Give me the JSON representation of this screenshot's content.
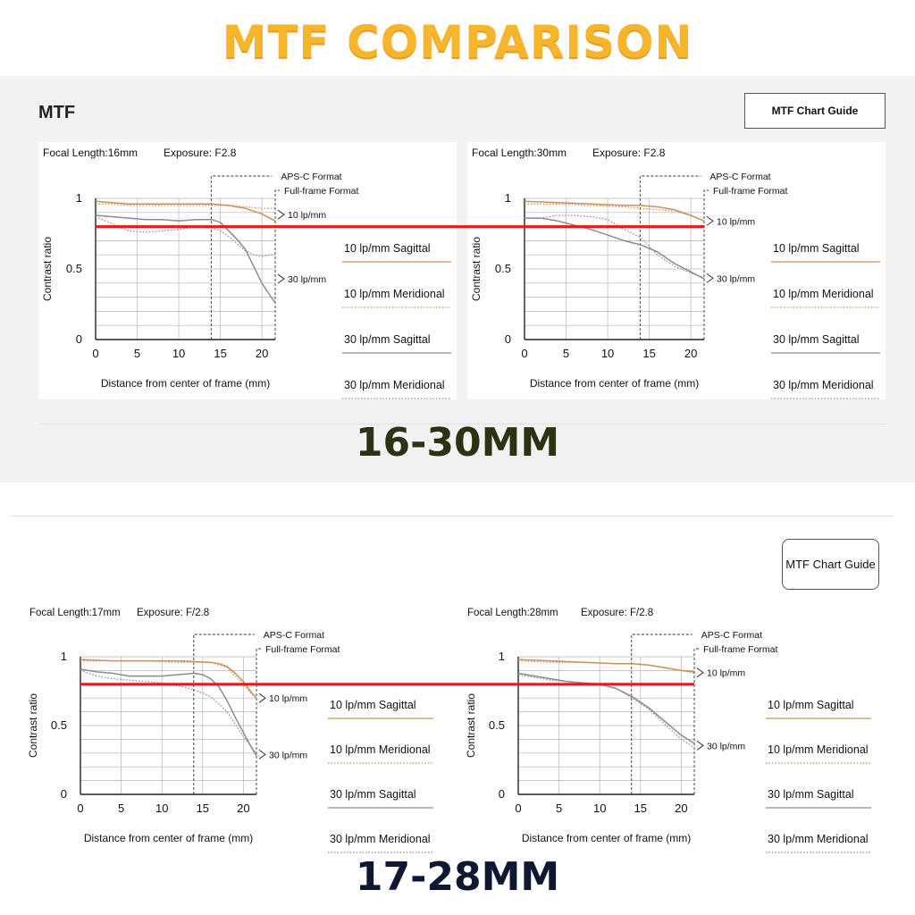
{
  "title": "MTF COMPARISON",
  "top_section": {
    "heading": "MTF",
    "guide_button": "MTF Chart Guide",
    "lens_label": "16-30MM"
  },
  "bottom_section": {
    "guide_button": "MTF Chart Guide",
    "lens_label": "17-28MM"
  },
  "legend": {
    "items": [
      {
        "label": "10 lp/mm Sagittal",
        "style": "solid",
        "color": "#c9925a"
      },
      {
        "label": "10 lp/mm Meridional",
        "style": "dotted",
        "color": "#c9925a"
      },
      {
        "label": "30 lp/mm Sagittal",
        "style": "solid",
        "color": "#8c8c8c"
      },
      {
        "label": "30 lp/mm Meridional",
        "style": "dotted",
        "color": "#8c8c8c"
      }
    ]
  },
  "reference_line": {
    "y": 0.8,
    "color": "#e8191d"
  },
  "chart_data": [
    {
      "id": "c16",
      "type": "line",
      "focal_length_label": "Focal Length:16mm",
      "exposure_label": "Exposure: F2.8",
      "xlabel": "Distance from center of frame (mm)",
      "ylabel": "Contrast ratio",
      "xlim": [
        0,
        21.6
      ],
      "ylim": [
        0,
        1
      ],
      "xticks": [
        "0",
        "5",
        "10",
        "15",
        "20"
      ],
      "yticks": [
        "0",
        "0.5",
        "1"
      ],
      "apsc_label": "APS-C Format",
      "apsc_x": 13.9,
      "ff_label": "Full-frame Format",
      "ff_x": 21.6,
      "annotations": [
        "10 lp/mm",
        "30 lp/mm"
      ],
      "series": [
        {
          "name": "10 lp/mm Sagittal",
          "x": [
            0,
            2,
            4,
            6,
            8,
            10,
            12,
            14,
            16,
            18,
            20,
            21.6
          ],
          "y": [
            0.98,
            0.97,
            0.96,
            0.96,
            0.96,
            0.96,
            0.96,
            0.96,
            0.95,
            0.93,
            0.89,
            0.84
          ]
        },
        {
          "name": "10 lp/mm Meridional",
          "x": [
            0,
            2,
            4,
            6,
            8,
            10,
            12,
            14,
            16,
            18,
            20,
            21.6
          ],
          "y": [
            0.96,
            0.96,
            0.95,
            0.95,
            0.95,
            0.95,
            0.95,
            0.95,
            0.95,
            0.94,
            0.93,
            0.93
          ]
        },
        {
          "name": "30 lp/mm Sagittal",
          "x": [
            0,
            2,
            4,
            6,
            8,
            10,
            12,
            14,
            15,
            16,
            17,
            18,
            19,
            20,
            21,
            21.6
          ],
          "y": [
            0.88,
            0.87,
            0.86,
            0.85,
            0.85,
            0.84,
            0.85,
            0.85,
            0.83,
            0.77,
            0.71,
            0.64,
            0.52,
            0.4,
            0.31,
            0.26
          ]
        },
        {
          "name": "30 lp/mm Meridional",
          "x": [
            0,
            2,
            4,
            6,
            8,
            10,
            12,
            14,
            15,
            16,
            17,
            18,
            19,
            20,
            21,
            21.6
          ],
          "y": [
            0.87,
            0.82,
            0.77,
            0.76,
            0.77,
            0.78,
            0.8,
            0.79,
            0.77,
            0.73,
            0.68,
            0.63,
            0.6,
            0.59,
            0.6,
            0.6
          ]
        }
      ]
    },
    {
      "id": "c30",
      "type": "line",
      "focal_length_label": "Focal Length:30mm",
      "exposure_label": "Exposure: F2.8",
      "xlabel": "Distance from center of frame (mm)",
      "ylabel": "Contrast ratio",
      "xlim": [
        0,
        21.6
      ],
      "ylim": [
        0,
        1
      ],
      "xticks": [
        "0",
        "5",
        "10",
        "15",
        "20"
      ],
      "yticks": [
        "0",
        "0.5",
        "1"
      ],
      "apsc_label": "APS-C Format",
      "apsc_x": 13.9,
      "ff_label": "Full-frame Format",
      "ff_x": 21.6,
      "annotations": [
        "10 lp/mm",
        "30 lp/mm"
      ],
      "series": [
        {
          "name": "10 lp/mm Sagittal",
          "x": [
            0,
            4,
            8,
            12,
            14,
            16,
            18,
            20,
            21.6
          ],
          "y": [
            0.98,
            0.97,
            0.96,
            0.95,
            0.95,
            0.94,
            0.92,
            0.88,
            0.84
          ]
        },
        {
          "name": "10 lp/mm Meridional",
          "x": [
            0,
            4,
            8,
            12,
            14,
            16,
            18,
            20,
            21.6
          ],
          "y": [
            0.96,
            0.96,
            0.95,
            0.94,
            0.93,
            0.92,
            0.91,
            0.88,
            0.84
          ]
        },
        {
          "name": "30 lp/mm Sagittal",
          "x": [
            0,
            2,
            4,
            6,
            8,
            10,
            12,
            14,
            16,
            18,
            20,
            21.6
          ],
          "y": [
            0.86,
            0.86,
            0.84,
            0.81,
            0.78,
            0.74,
            0.7,
            0.67,
            0.62,
            0.54,
            0.48,
            0.43
          ]
        },
        {
          "name": "30 lp/mm Meridional",
          "x": [
            0,
            2,
            4,
            6,
            8,
            10,
            12,
            14,
            15,
            16,
            17,
            18,
            20,
            21.6
          ],
          "y": [
            0.86,
            0.86,
            0.88,
            0.88,
            0.87,
            0.85,
            0.78,
            0.72,
            0.66,
            0.6,
            0.56,
            0.52,
            0.47,
            0.44
          ]
        }
      ]
    },
    {
      "id": "c17",
      "type": "line",
      "focal_length_label": "Focal Length:17mm",
      "exposure_label": "Exposure: F/2.8",
      "xlabel": "Distance from center of frame (mm)",
      "ylabel": "Contrast ratio",
      "xlim": [
        0,
        21.6
      ],
      "ylim": [
        0,
        1
      ],
      "xticks": [
        "0",
        "5",
        "10",
        "15",
        "20"
      ],
      "yticks": [
        "0",
        "0.5",
        "1"
      ],
      "apsc_label": "APS-C Format",
      "apsc_x": 13.9,
      "ff_label": "Full-frame Format",
      "ff_x": 21.6,
      "annotations": [
        "10 lp/mm",
        "30 lp/mm"
      ],
      "series": [
        {
          "name": "10 lp/mm Sagittal",
          "x": [
            0,
            4,
            8,
            12,
            16,
            17,
            18,
            19,
            20,
            21,
            21.6
          ],
          "y": [
            0.98,
            0.97,
            0.97,
            0.97,
            0.96,
            0.95,
            0.93,
            0.88,
            0.82,
            0.74,
            0.7
          ]
        },
        {
          "name": "10 lp/mm Meridional",
          "x": [
            0,
            4,
            8,
            12,
            16,
            18,
            19,
            20,
            21,
            21.6
          ],
          "y": [
            0.97,
            0.97,
            0.97,
            0.96,
            0.96,
            0.92,
            0.86,
            0.8,
            0.73,
            0.7
          ]
        },
        {
          "name": "30 lp/mm Sagittal",
          "x": [
            0,
            2,
            4,
            6,
            8,
            10,
            12,
            14,
            15,
            16,
            17,
            18,
            19,
            20,
            21,
            21.6
          ],
          "y": [
            0.91,
            0.89,
            0.88,
            0.86,
            0.86,
            0.86,
            0.87,
            0.88,
            0.87,
            0.84,
            0.78,
            0.68,
            0.56,
            0.45,
            0.34,
            0.28
          ]
        },
        {
          "name": "30 lp/mm Meridional",
          "x": [
            0,
            2,
            4,
            6,
            8,
            10,
            12,
            14,
            16,
            18,
            20,
            21.6
          ],
          "y": [
            0.9,
            0.86,
            0.84,
            0.83,
            0.82,
            0.81,
            0.79,
            0.76,
            0.71,
            0.6,
            0.42,
            0.3
          ]
        }
      ]
    },
    {
      "id": "c28",
      "type": "line",
      "focal_length_label": "Focal Length:28mm",
      "exposure_label": "Exposure: F/2.8",
      "xlabel": "Distance from center of frame (mm)",
      "ylabel": "Contrast ratio",
      "xlim": [
        0,
        21.6
      ],
      "ylim": [
        0,
        1
      ],
      "xticks": [
        "0",
        "5",
        "10",
        "15",
        "20"
      ],
      "yticks": [
        "0",
        "0.5",
        "1"
      ],
      "apsc_label": "APS-C Format",
      "apsc_x": 13.9,
      "ff_label": "Full-frame Format",
      "ff_x": 21.6,
      "annotations": [
        "10 lp/mm",
        "30 lp/mm"
      ],
      "series": [
        {
          "name": "10 lp/mm Sagittal",
          "x": [
            0,
            4,
            8,
            12,
            14,
            16,
            18,
            20,
            21.6
          ],
          "y": [
            0.98,
            0.97,
            0.96,
            0.95,
            0.95,
            0.94,
            0.92,
            0.9,
            0.89
          ]
        },
        {
          "name": "10 lp/mm Meridional",
          "x": [
            0,
            4,
            8,
            12,
            14,
            16,
            18,
            20,
            21.6
          ],
          "y": [
            0.97,
            0.96,
            0.96,
            0.95,
            0.95,
            0.94,
            0.92,
            0.9,
            0.88
          ]
        },
        {
          "name": "30 lp/mm Sagittal",
          "x": [
            0,
            2,
            4,
            6,
            8,
            10,
            12,
            14,
            16,
            18,
            20,
            21.6
          ],
          "y": [
            0.88,
            0.86,
            0.84,
            0.82,
            0.81,
            0.8,
            0.77,
            0.71,
            0.63,
            0.53,
            0.43,
            0.37
          ]
        },
        {
          "name": "30 lp/mm Meridional",
          "x": [
            0,
            2,
            4,
            6,
            8,
            10,
            12,
            14,
            16,
            18,
            20,
            21.6
          ],
          "y": [
            0.87,
            0.85,
            0.83,
            0.82,
            0.81,
            0.8,
            0.77,
            0.7,
            0.62,
            0.51,
            0.4,
            0.34
          ]
        }
      ]
    }
  ]
}
